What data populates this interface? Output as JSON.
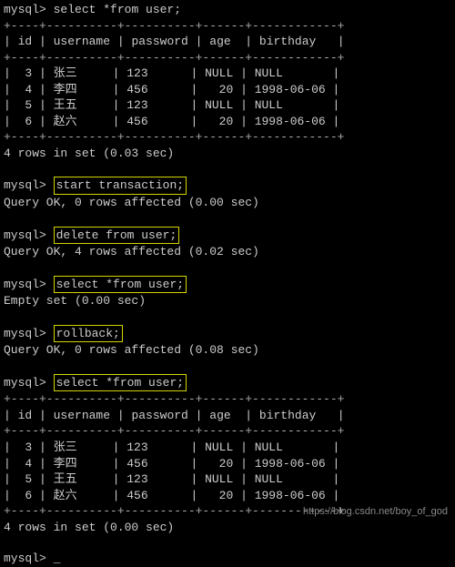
{
  "colors": {
    "background": "#000000",
    "text": "#cccccc",
    "highlight_border": "#d4d400",
    "divider": "#888888",
    "watermark": "#888888"
  },
  "prompt": "mysql>",
  "commands": {
    "select1": "select *from user;",
    "start_tx": "start transaction;",
    "delete": "delete from user;",
    "select2": "select *from user;",
    "rollback": "rollback;",
    "select3": "select *from user;"
  },
  "table": {
    "separator": "+----+----------+----------+------+------------+",
    "headers": {
      "id": "id",
      "username": "username",
      "password": "password",
      "age": "age",
      "birthday": "birthday"
    },
    "rows": [
      {
        "id": "3",
        "username": "张三",
        "password": "123",
        "age": "NULL",
        "birthday": "NULL"
      },
      {
        "id": "4",
        "username": "李四",
        "password": "456",
        "age": "  20",
        "birthday": "1998-06-06"
      },
      {
        "id": "5",
        "username": "王五",
        "password": "123",
        "age": "NULL",
        "birthday": "NULL"
      },
      {
        "id": "6",
        "username": "赵六",
        "password": "456",
        "age": "  20",
        "birthday": "1998-06-06"
      }
    ]
  },
  "results": {
    "four_rows_003": "4 rows in set (0.03 sec)",
    "four_rows_000": "4 rows in set (0.00 sec)",
    "ok_0_000": "Query OK, 0 rows affected (0.00 sec)",
    "ok_4_002": "Query OK, 4 rows affected (0.02 sec)",
    "empty_000": "Empty set (0.00 sec)",
    "ok_0_008": "Query OK, 0 rows affected (0.08 sec)"
  },
  "watermark": "https://blog.csdn.net/boy_of_god"
}
